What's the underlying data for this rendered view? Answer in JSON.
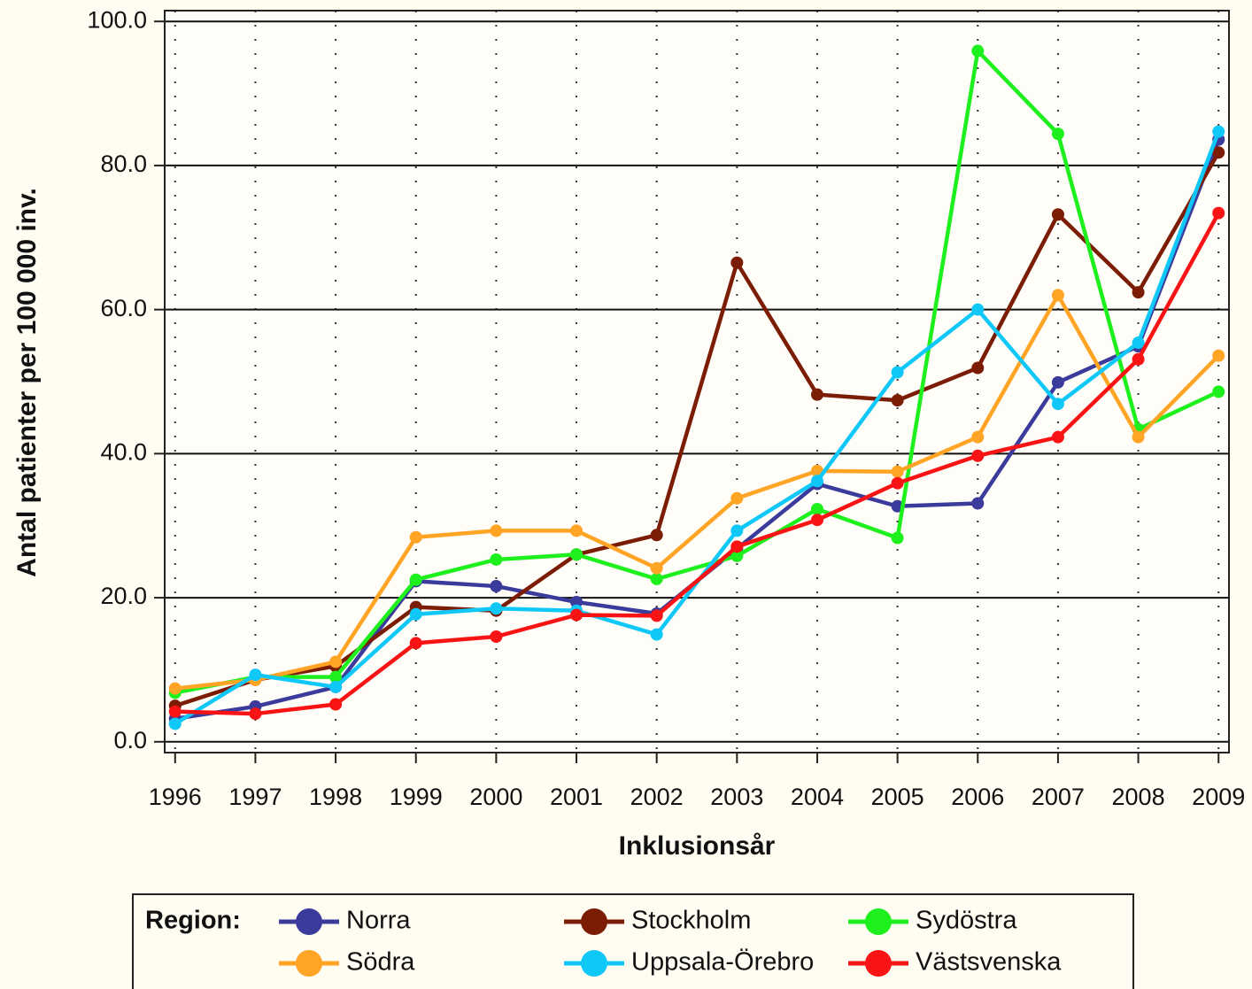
{
  "chart_data": {
    "type": "line",
    "y_label": "Antal patienter per 100 000 inv.",
    "x_label": "Inklusionsår",
    "legend_title": "Region:",
    "x": [
      1996,
      1997,
      1998,
      1999,
      2000,
      2001,
      2002,
      2003,
      2004,
      2005,
      2006,
      2007,
      2008,
      2009
    ],
    "xlim": [
      1995.87,
      2009.13
    ],
    "xticks": [
      1996,
      1997,
      1998,
      1999,
      2000,
      2001,
      2002,
      2003,
      2004,
      2005,
      2006,
      2007,
      2008,
      2009
    ],
    "ylim": [
      -1.5,
      101.5
    ],
    "yticks": [
      {
        "value": 0,
        "label": "0.0"
      },
      {
        "value": 20,
        "label": "20.0"
      },
      {
        "value": 40,
        "label": "40.0"
      },
      {
        "value": 60,
        "label": "60.0"
      },
      {
        "value": 80,
        "label": "80.0"
      },
      {
        "value": 100,
        "label": "100.0"
      }
    ],
    "grid": true,
    "legend": "bottom",
    "series": [
      {
        "name": "Norra",
        "color": "#3b3b9c",
        "values": [
          3.2,
          4.9,
          7.6,
          22.3,
          21.6,
          19.4,
          17.8,
          26.8,
          35.8,
          32.7,
          33.1,
          49.9,
          54.9,
          83.6
        ]
      },
      {
        "name": "Stockholm",
        "color": "#7b1c04",
        "values": [
          5.0,
          8.6,
          10.5,
          18.7,
          18.2,
          26.0,
          28.7,
          66.5,
          48.2,
          47.4,
          51.9,
          73.2,
          62.4,
          81.8
        ]
      },
      {
        "name": "Sydöstra",
        "color": "#1ef01e",
        "values": [
          6.8,
          9.0,
          9.0,
          22.5,
          25.3,
          26.0,
          22.6,
          25.8,
          32.3,
          28.3,
          95.9,
          84.4,
          43.4,
          48.6
        ]
      },
      {
        "name": "Södra",
        "color": "#ffa424",
        "values": [
          7.4,
          8.6,
          11.1,
          28.4,
          29.3,
          29.3,
          24.1,
          33.8,
          37.6,
          37.5,
          42.3,
          62.0,
          42.3,
          53.6
        ]
      },
      {
        "name": "Uppsala-Örebro",
        "color": "#10c8f8",
        "values": [
          2.5,
          9.3,
          7.6,
          17.7,
          18.5,
          18.2,
          14.9,
          29.3,
          36.2,
          51.3,
          60.0,
          46.9,
          55.4,
          84.7
        ]
      },
      {
        "name": "Västsvenska",
        "color": "#f81414",
        "values": [
          4.2,
          3.9,
          5.2,
          13.7,
          14.6,
          17.6,
          17.5,
          27.1,
          30.8,
          35.9,
          39.7,
          42.3,
          53.1,
          73.4
        ]
      }
    ]
  }
}
